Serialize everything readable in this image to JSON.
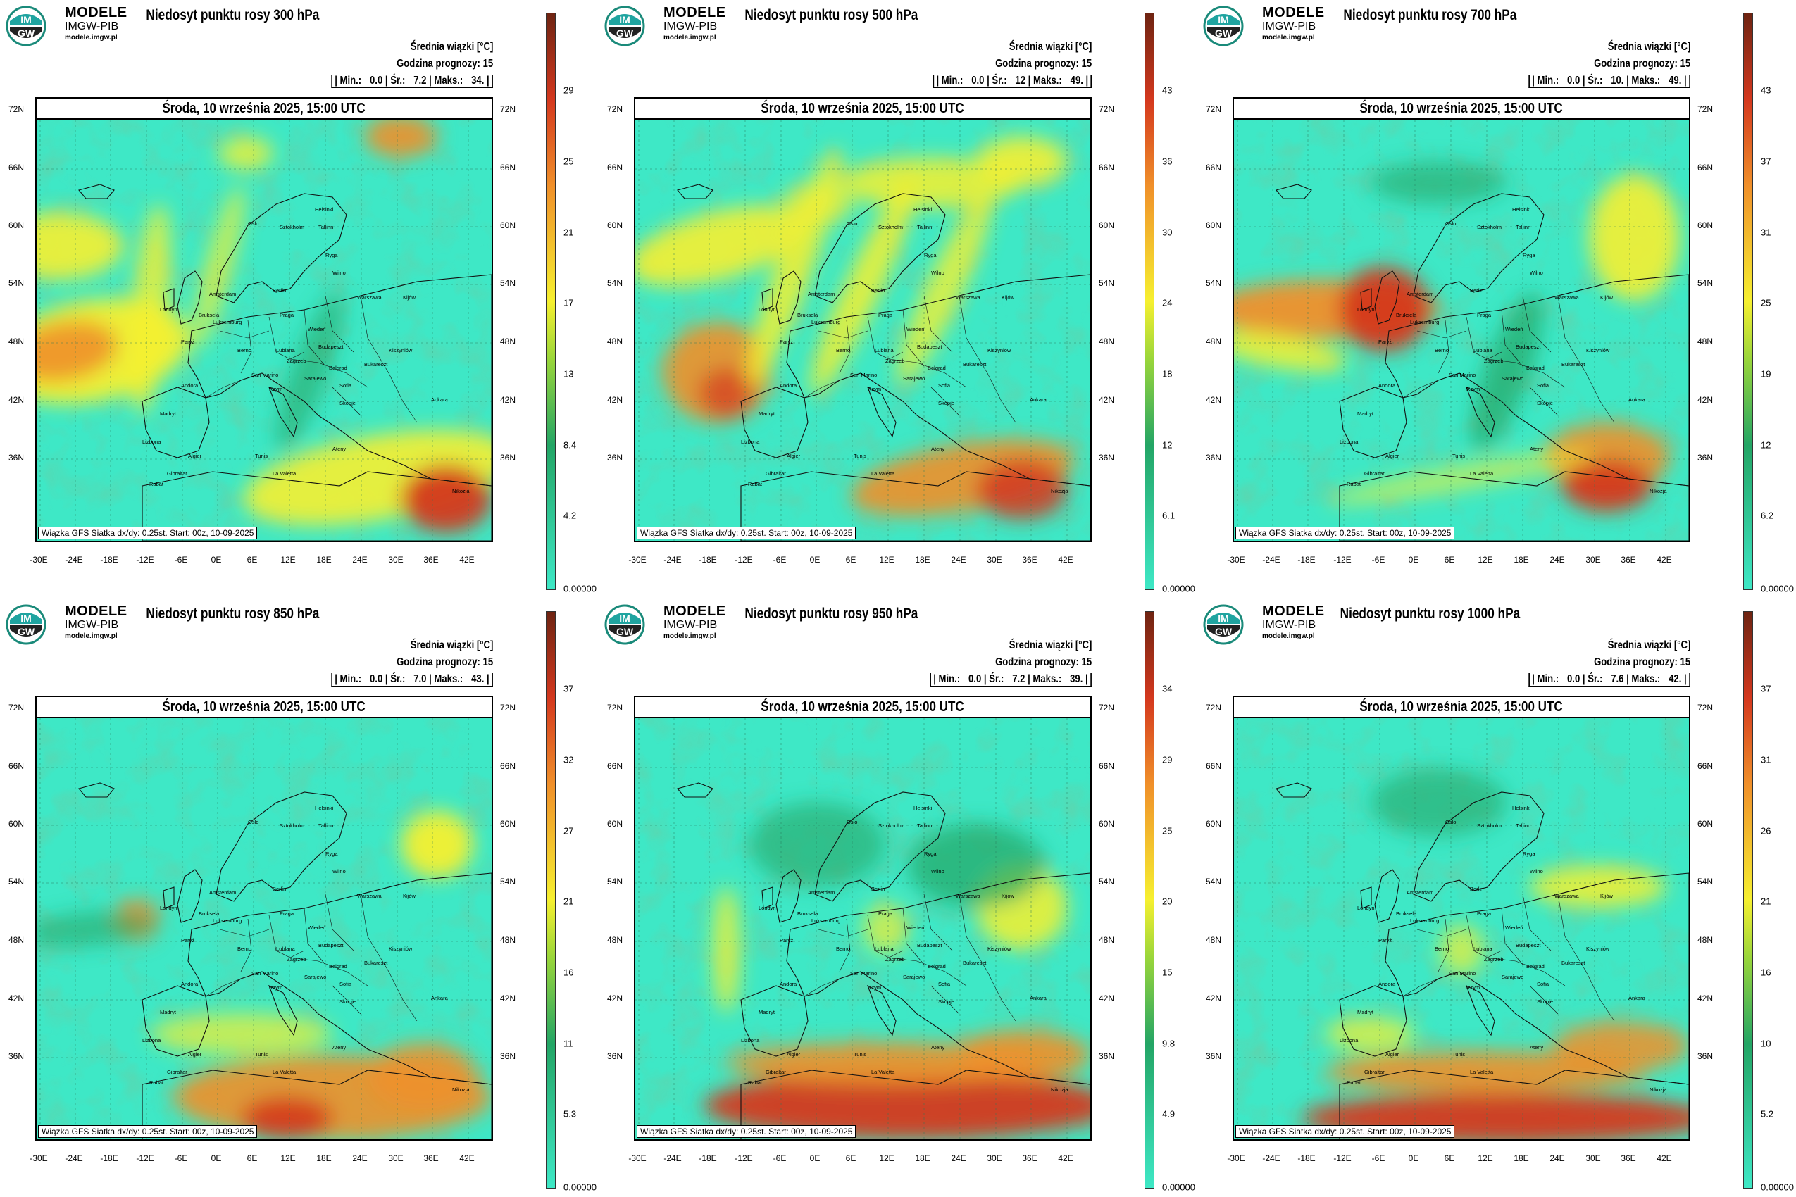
{
  "logo": {
    "line1": "MODELE",
    "line2": "IMGW-PIB",
    "line3": "modele.imgw.pl",
    "mark_top": "IM",
    "mark_bottom": "GW"
  },
  "common": {
    "mean_label": "Średnia wiązki [°C]",
    "forecast_hour": "Godzina prognozy: 15",
    "date": "Środa, 10 września 2025, 15:00 UTC",
    "footer": "Wiązka GFS Siatka dx/dy: 0.25st. Start: 00z, 10-09-2025",
    "lat_labels": [
      "72N",
      "66N",
      "60N",
      "54N",
      "48N",
      "42N",
      "36N"
    ],
    "lon_labels": [
      "-30E",
      "-24E",
      "-18E",
      "-12E",
      "-6E",
      "0E",
      "6E",
      "12E",
      "18E",
      "24E",
      "30E",
      "36E",
      "42E"
    ]
  },
  "colors": {
    "low": "#3ee8c6",
    "mid": "#23a565",
    "yellow": "#f6f030",
    "orange": "#f0902a",
    "red": "#d4381e",
    "dark": "#6e2412"
  },
  "cities": [
    "Londyn",
    "Paryż",
    "Oslo",
    "Helsinki",
    "Sztokholm",
    "Tallinn",
    "Ryga",
    "Wilno",
    "Warszawa",
    "Berlin",
    "Amsterdam",
    "Bruksela",
    "Luksemburg",
    "Praga",
    "Wiedeń",
    "Berno",
    "Rzym",
    "Madryt",
    "Lizbona",
    "Algier",
    "Tunis",
    "La Valetta",
    "Ateny",
    "Sofia",
    "Bukareszt",
    "Belgrad",
    "Ankara",
    "Kijów",
    "Kiszyniów",
    "Budapeszt",
    "Zagrzeb",
    "Andora",
    "Rabat",
    "Gibraltar",
    "Nikozja",
    "Skopje",
    "San Marino",
    "Lublana",
    "Sarajewo"
  ],
  "panels": [
    {
      "title": "Niedosyt punktu rosy 300 hPa",
      "stats": {
        "min": "0.0",
        "mean": "7.2",
        "max": "34."
      },
      "colorbar": [
        "29",
        "25",
        "21",
        "17",
        "13",
        "8.4",
        "4.2",
        "0.00000"
      ]
    },
    {
      "title": "Niedosyt punktu rosy 500 hPa",
      "stats": {
        "min": "0.0",
        "mean": "12",
        "max": "49."
      },
      "colorbar": [
        "43",
        "36",
        "30",
        "24",
        "18",
        "12",
        "6.1",
        "0.00000"
      ]
    },
    {
      "title": "Niedosyt punktu rosy 700 hPa",
      "stats": {
        "min": "0.0",
        "mean": "10.",
        "max": "49."
      },
      "colorbar": [
        "43",
        "37",
        "31",
        "25",
        "19",
        "12",
        "6.2",
        "0.00000"
      ]
    },
    {
      "title": "Niedosyt punktu rosy 850 hPa",
      "stats": {
        "min": "0.0",
        "mean": "7.0",
        "max": "43."
      },
      "colorbar": [
        "37",
        "32",
        "27",
        "21",
        "16",
        "11",
        "5.3",
        "0.00000"
      ]
    },
    {
      "title": "Niedosyt punktu rosy 950 hPa",
      "stats": {
        "min": "0.0",
        "mean": "7.2",
        "max": "39."
      },
      "colorbar": [
        "34",
        "29",
        "25",
        "20",
        "15",
        "9.8",
        "4.9",
        "0.00000"
      ]
    },
    {
      "title": "Niedosyt punktu rosy 1000 hPa",
      "stats": {
        "min": "0.0",
        "mean": "7.6",
        "max": "42."
      },
      "colorbar": [
        "37",
        "31",
        "26",
        "21",
        "16",
        "10",
        "5.2",
        "0.00000"
      ]
    }
  ]
}
